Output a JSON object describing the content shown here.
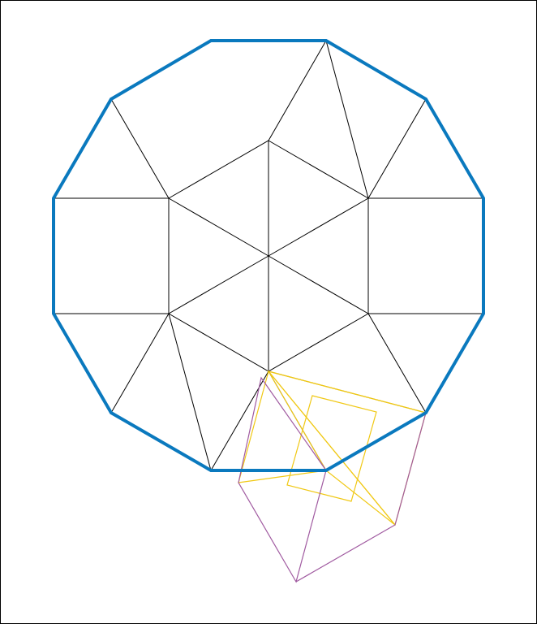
{
  "diagram": {
    "colors": {
      "outline": "#0a79be",
      "inner_lines": "#000000",
      "yellow_squares": "#f0c814",
      "purple_square": "#a05aa0",
      "background": "#ffffff",
      "frame": "#000000"
    },
    "shapes": [
      "dodecagon-outline",
      "inner-hexagon",
      "hexagon-spokes",
      "outer-squares",
      "outer-triangles",
      "yellow-square-small",
      "yellow-square-medium",
      "yellow-square-large",
      "purple-square"
    ]
  }
}
